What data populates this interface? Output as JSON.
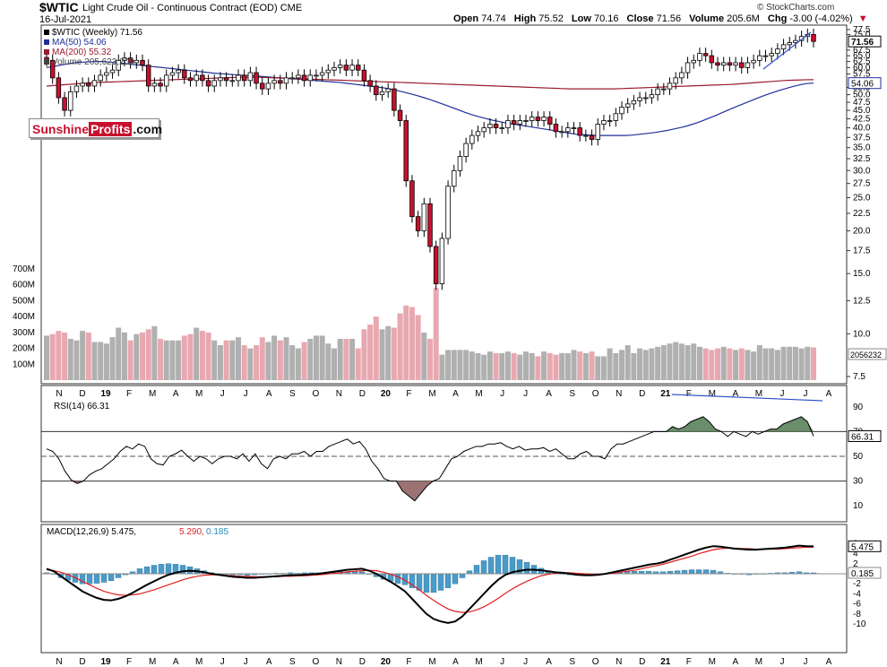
{
  "header": {
    "symbol": "$WTIC",
    "description": "Light Crude Oil - Continuous Contract (EOD)",
    "exchange": "CME",
    "date": "16-Jul-2021",
    "open_label": "Open",
    "open": "74.74",
    "high_label": "High",
    "high": "75.52",
    "low_label": "Low",
    "low": "70.16",
    "close_label": "Close",
    "close": "71.56",
    "volume_label": "Volume",
    "volume": "205.6M",
    "chg_label": "Chg",
    "chg": "-3.00 (-4.02%)",
    "chg_arrow": "▼",
    "credit": "© StockCharts.com"
  },
  "logo": {
    "part1": "Sunshine",
    "part2": "Profits",
    "part3": ".com"
  },
  "colors": {
    "up": "#ffffff",
    "down": "#c8102e",
    "ma50": "#1f2f99",
    "ma200": "#9b1b30",
    "rsi_fill": "#4f7a4f",
    "rsi_low_fill": "#8a5a5a",
    "macd_hist": "#4a9bc7",
    "signal": "#e02020",
    "vol_up": "#b0b0b0",
    "vol_down": "#e8a8b0",
    "trend": "#3050c8"
  },
  "chart_data": [
    {
      "type": "candlestick",
      "title": "$WTIC (Weekly) 71.56",
      "legend": [
        "$WTIC (Weekly) 71.56",
        "MA(50) 54.06",
        "MA(200) 55.32",
        "Volume 205,623,200"
      ],
      "y_ticks": [
        "77.5",
        "75.0",
        "72.5",
        "70.0",
        "67.5",
        "65.0",
        "62.5",
        "60.0",
        "57.5",
        "55.0",
        "52.5",
        "50.0",
        "47.5",
        "45.0",
        "42.5",
        "40.0",
        "37.5",
        "35.0",
        "32.5",
        "30.0",
        "27.5",
        "25.0",
        "22.5",
        "20.0",
        "17.5",
        "15.0",
        "12.5",
        "10.0",
        "7.5"
      ],
      "y_labels_shown": [
        "77.5",
        "75.0",
        "67.5",
        "65.0",
        "62.5",
        "60.0",
        "57.5",
        "52.5",
        "50.0",
        "47.5",
        "45.0",
        "42.5",
        "40.0",
        "37.5",
        "35.0",
        "32.5",
        "30.0",
        "27.5",
        "25.0",
        "22.5",
        "20.0",
        "17.5",
        "15.0",
        "12.5",
        "10.0",
        "7.5"
      ],
      "last_price_tag": "71.56",
      "ma50_tag": "54.06",
      "volume_tag": "2056232",
      "volume_ticks": [
        "700M",
        "600M",
        "500M",
        "400M",
        "300M",
        "200M",
        "100M"
      ],
      "x_labels": [
        "N",
        "D",
        "19",
        "F",
        "M",
        "A",
        "M",
        "J",
        "J",
        "A",
        "S",
        "O",
        "N",
        "D",
        "20",
        "F",
        "M",
        "A",
        "M",
        "J",
        "J",
        "A",
        "S",
        "O",
        "N",
        "D",
        "21",
        "F",
        "M",
        "A",
        "M",
        "J",
        "J",
        "A"
      ],
      "close": [
        63,
        56,
        49,
        45,
        51,
        53,
        54,
        53,
        55,
        57,
        58,
        59,
        63,
        64,
        62,
        63,
        61,
        53,
        54,
        53,
        57,
        58,
        59,
        56,
        55,
        57,
        55,
        53,
        55,
        56,
        55,
        55,
        57,
        55,
        58,
        54,
        52,
        54,
        55,
        54,
        56,
        56,
        57,
        55,
        57,
        57,
        58,
        59,
        60,
        61,
        59,
        61,
        59,
        55,
        53,
        50,
        51,
        52,
        45,
        42,
        28,
        22,
        20,
        24,
        18,
        14,
        19,
        27,
        30,
        33,
        36,
        38,
        39,
        40,
        41,
        40,
        40,
        42,
        41,
        42,
        42,
        43,
        42,
        43,
        41,
        39,
        39,
        40,
        40,
        38,
        38,
        37,
        41,
        42,
        42,
        44,
        46,
        47,
        48,
        49,
        49,
        50,
        52,
        52,
        54,
        56,
        58,
        62,
        63,
        66,
        65,
        62,
        61,
        62,
        61,
        62,
        60,
        62,
        63,
        65,
        65,
        66,
        68,
        70,
        71,
        72,
        74,
        75,
        71.56
      ],
      "volume_M": [
        280,
        290,
        310,
        300,
        260,
        250,
        310,
        300,
        240,
        240,
        230,
        270,
        330,
        300,
        250,
        290,
        300,
        320,
        340,
        260,
        250,
        250,
        250,
        280,
        290,
        330,
        310,
        300,
        250,
        220,
        250,
        250,
        270,
        220,
        200,
        220,
        270,
        240,
        280,
        250,
        270,
        220,
        200,
        240,
        260,
        280,
        280,
        230,
        200,
        260,
        260,
        260,
        200,
        320,
        350,
        400,
        320,
        340,
        330,
        420,
        470,
        460,
        410,
        300,
        260,
        580,
        160,
        190,
        190,
        190,
        190,
        180,
        170,
        160,
        180,
        170,
        170,
        180,
        170,
        160,
        180,
        170,
        150,
        180,
        170,
        160,
        170,
        170,
        190,
        180,
        170,
        180,
        150,
        150,
        200,
        170,
        190,
        220,
        170,
        200,
        190,
        200,
        210,
        220,
        230,
        240,
        230,
        220,
        230,
        210,
        200,
        190,
        200,
        210,
        200,
        190,
        200,
        190,
        180,
        220,
        200,
        200,
        190,
        210,
        210,
        210,
        200,
        210,
        205.6
      ],
      "ma50": [
        60,
        60.5,
        61,
        61.5,
        62,
        62.2,
        62.4,
        62.5,
        62.5,
        62.3,
        62,
        61.7,
        61.4,
        61.1,
        60.8,
        60.5,
        60.2,
        59.9,
        59.6,
        59.3,
        59,
        58.7,
        58.4,
        58.1,
        57.8,
        57.6,
        57.4,
        57.2,
        57,
        56.9,
        56.7,
        56.5,
        56.3,
        56.1,
        55.9,
        55.7,
        55.5,
        55.3,
        55.1,
        54.9,
        54.7,
        54.5,
        54.3,
        54,
        53.7,
        53.4,
        53.1,
        52.8,
        52.5,
        52.1,
        51.6,
        51,
        50.4,
        49.8,
        49.1,
        48.4,
        47.6,
        46.8,
        46,
        45.2,
        44.4,
        43.7,
        43.1,
        42.6,
        42.1,
        41.7,
        41.3,
        41,
        40.7,
        40.4,
        40.1,
        39.8,
        39.5,
        39.2,
        38.9,
        38.6,
        38.3,
        38.2,
        38.1,
        38,
        38,
        38,
        38,
        38,
        38.1,
        38.3,
        38.5,
        38.7,
        39,
        39.3,
        39.7,
        40.1,
        40.6,
        41.2,
        41.9,
        42.7,
        43.5,
        44.4,
        45.3,
        46.2,
        47.1,
        48,
        48.9,
        49.8,
        50.6,
        51.4,
        52.1,
        52.8,
        53.4,
        53.9,
        54.06
      ],
      "ma200": [
        53,
        53.2,
        53.4,
        53.6,
        53.8,
        54,
        54.2,
        54.3,
        54.4,
        54.5,
        54.6,
        54.7,
        54.8,
        54.9,
        55,
        55.1,
        55.2,
        55.3,
        55.4,
        55.5,
        55.6,
        55.7,
        55.8,
        55.9,
        56,
        56.1,
        56.2,
        56.2,
        56.2,
        56.2,
        56.1,
        56,
        55.9,
        55.8,
        55.7,
        55.6,
        55.5,
        55.4,
        55.3,
        55.2,
        55.1,
        55,
        54.9,
        54.8,
        54.7,
        54.6,
        54.5,
        54.4,
        54.3,
        54.2,
        54.1,
        54,
        53.9,
        53.8,
        53.7,
        53.6,
        53.5,
        53.4,
        53.3,
        53.2,
        53.1,
        53,
        52.9,
        52.8,
        52.7,
        52.6,
        52.5,
        52.4,
        52.3,
        52.2,
        52.1,
        52,
        52,
        52,
        52,
        52,
        52,
        52,
        52.1,
        52.2,
        52.3,
        52.4,
        52.5,
        52.6,
        52.7,
        52.8,
        52.9,
        53,
        53.1,
        53.2,
        53.3,
        53.4,
        53.5,
        53.6,
        53.8,
        54,
        54.2,
        54.4,
        54.6,
        54.8,
        55,
        55.1,
        55.2,
        55.3,
        55.32
      ]
    },
    {
      "type": "line",
      "title": "RSI(14) 66.31",
      "y_ticks": [
        "90",
        "70",
        "50",
        "30",
        "10"
      ],
      "value_tag": "66.31",
      "values": [
        56,
        54,
        48,
        38,
        31,
        28,
        30,
        35,
        38,
        40,
        44,
        48,
        54,
        58,
        56,
        60,
        58,
        48,
        44,
        43,
        50,
        52,
        55,
        50,
        46,
        50,
        48,
        44,
        48,
        50,
        50,
        48,
        52,
        46,
        52,
        44,
        40,
        48,
        50,
        48,
        52,
        52,
        54,
        50,
        54,
        54,
        58,
        60,
        62,
        64,
        60,
        62,
        56,
        46,
        40,
        32,
        30,
        30,
        22,
        18,
        14,
        20,
        26,
        30,
        32,
        40,
        48,
        50,
        54,
        56,
        58,
        58,
        60,
        60,
        61,
        58,
        56,
        58,
        55,
        56,
        56,
        57,
        54,
        56,
        52,
        48,
        48,
        52,
        54,
        50,
        50,
        48,
        56,
        60,
        60,
        62,
        64,
        66,
        68,
        70,
        70,
        70,
        74,
        72,
        74,
        78,
        80,
        82,
        78,
        72,
        70,
        66,
        70,
        68,
        66,
        70,
        68,
        70,
        72,
        72,
        76,
        78,
        80,
        82,
        78,
        66.31
      ]
    },
    {
      "type": "line",
      "title": "MACD(12,26,9) 5.475, 5.290, 0.185",
      "series_names": [
        "MACD(12,26,9)",
        "5.475",
        "5.290",
        "0.185"
      ],
      "y_ticks": [
        "6",
        "4",
        "2",
        "0",
        "-2",
        "-4",
        "-6",
        "-8",
        "-10"
      ],
      "tags": [
        "5.475",
        "0.185"
      ],
      "macd": [
        1,
        0.5,
        -0.5,
        -1.5,
        -2.5,
        -3.5,
        -4.2,
        -4.8,
        -5.2,
        -5.3,
        -5,
        -4.5,
        -3.8,
        -3,
        -2.2,
        -1.5,
        -0.8,
        -0.2,
        0.2,
        0.5,
        0.6,
        0.5,
        0.3,
        0,
        -0.2,
        -0.4,
        -0.6,
        -0.7,
        -0.8,
        -0.8,
        -0.7,
        -0.6,
        -0.5,
        -0.4,
        -0.3,
        -0.3,
        -0.2,
        -0.1,
        0,
        0.2,
        0.4,
        0.6,
        0.8,
        0.9,
        1,
        0.6,
        0,
        -0.8,
        -1.6,
        -2.5,
        -3.5,
        -5,
        -6.5,
        -8,
        -9,
        -9.5,
        -9.8,
        -9.5,
        -8.5,
        -7,
        -5.5,
        -4,
        -2.5,
        -1.2,
        -0.2,
        0.3,
        0.6,
        0.8,
        0.8,
        0.7,
        0.5,
        0.3,
        0.2,
        0,
        -0.2,
        -0.3,
        -0.3,
        -0.2,
        0,
        0.3,
        0.6,
        0.9,
        1.2,
        1.5,
        1.8,
        2,
        2.3,
        2.8,
        3.3,
        3.8,
        4.3,
        4.8,
        5.2,
        5.5,
        5.4,
        5.2,
        5,
        4.9,
        4.8,
        4.8,
        4.9,
        5,
        5.1,
        5.2,
        5.4,
        5.6,
        5.5,
        5.475
      ],
      "signal": [
        0.8,
        0.6,
        0.3,
        -0.2,
        -0.8,
        -1.5,
        -2.2,
        -2.9,
        -3.5,
        -3.9,
        -4.2,
        -4.3,
        -4.2,
        -4,
        -3.6,
        -3.2,
        -2.7,
        -2.2,
        -1.7,
        -1.2,
        -0.8,
        -0.5,
        -0.3,
        -0.2,
        -0.2,
        -0.3,
        -0.4,
        -0.5,
        -0.5,
        -0.6,
        -0.6,
        -0.6,
        -0.6,
        -0.5,
        -0.5,
        -0.4,
        -0.4,
        -0.3,
        -0.2,
        -0.1,
        0.1,
        0.2,
        0.4,
        0.5,
        0.6,
        0.7,
        0.6,
        0.3,
        -0.1,
        -0.6,
        -1.3,
        -2.2,
        -3.2,
        -4.3,
        -5.3,
        -6.2,
        -7,
        -7.5,
        -7.7,
        -7.6,
        -7.2,
        -6.6,
        -5.8,
        -4.9,
        -3.9,
        -3,
        -2.2,
        -1.5,
        -0.9,
        -0.4,
        -0.1,
        0.1,
        0.2,
        0.2,
        0.1,
        0,
        -0.1,
        -0.1,
        0,
        0.1,
        0.3,
        0.5,
        0.7,
        1,
        1.3,
        1.6,
        1.9,
        2.3,
        2.7,
        3.1,
        3.5,
        4,
        4.4,
        4.8,
        5,
        5.1,
        5.1,
        5,
        5,
        4.9,
        4.9,
        4.9,
        4.9,
        5,
        5.1,
        5.2,
        5.3,
        5.29
      ]
    }
  ]
}
